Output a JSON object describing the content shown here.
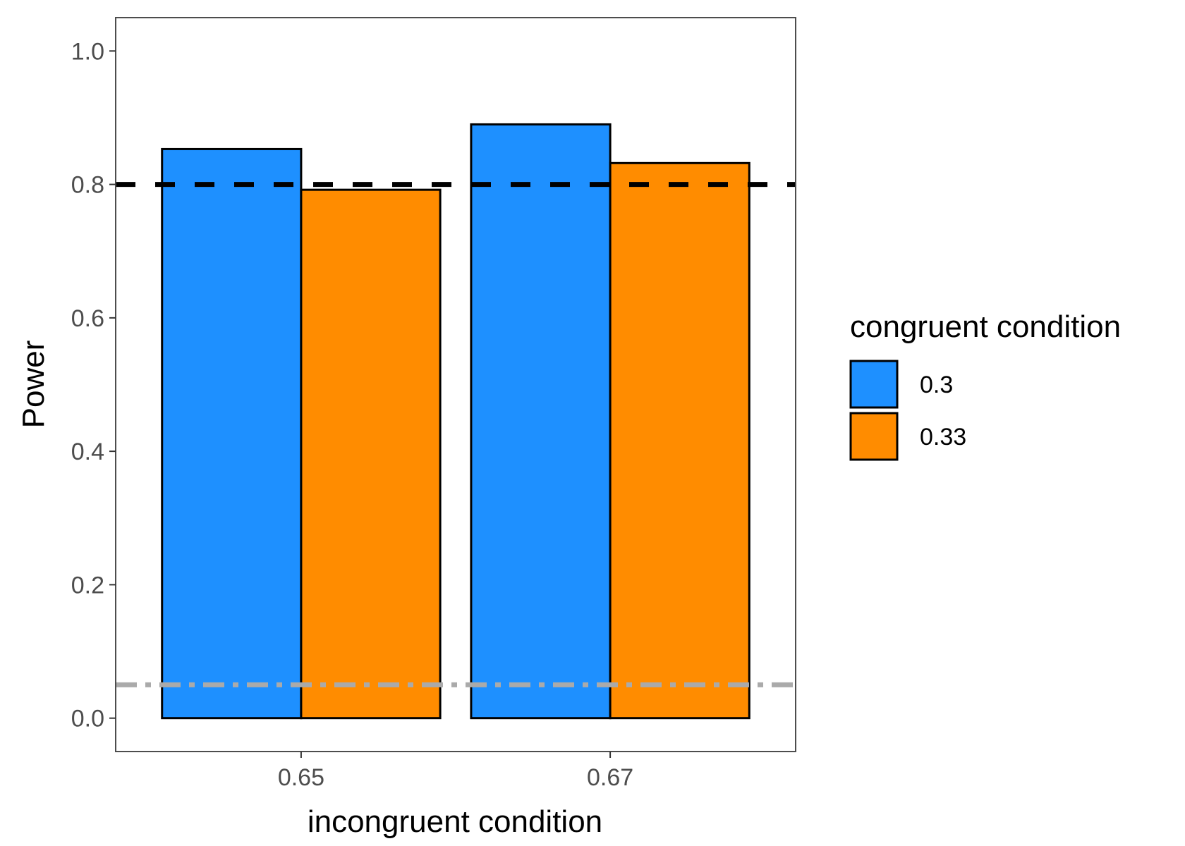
{
  "chart_data": {
    "type": "bar",
    "title": "",
    "xlabel": "incongruent condition",
    "ylabel": "Power",
    "categories": [
      "0.65",
      "0.67"
    ],
    "series": [
      {
        "name": "0.3",
        "color": "#1E90FF",
        "values": [
          0.853,
          0.89
        ]
      },
      {
        "name": "0.33",
        "color": "#FF8C00",
        "values": [
          0.792,
          0.832
        ]
      }
    ],
    "ylim": [
      -0.05,
      1.05
    ],
    "yticks": [
      0.0,
      0.2,
      0.4,
      0.6,
      0.8,
      1.0
    ],
    "ytick_labels": [
      "0.0",
      "0.2",
      "0.4",
      "0.6",
      "0.8",
      "1.0"
    ],
    "reference_lines": [
      {
        "y": 0.8,
        "style": "dashed",
        "color": "#000000"
      },
      {
        "y": 0.05,
        "style": "dot-dash",
        "color": "#AAAAAA"
      }
    ],
    "legend": {
      "title": "congruent condition",
      "placement": "right",
      "entries": [
        "0.3",
        "0.33"
      ]
    },
    "grid": false
  }
}
